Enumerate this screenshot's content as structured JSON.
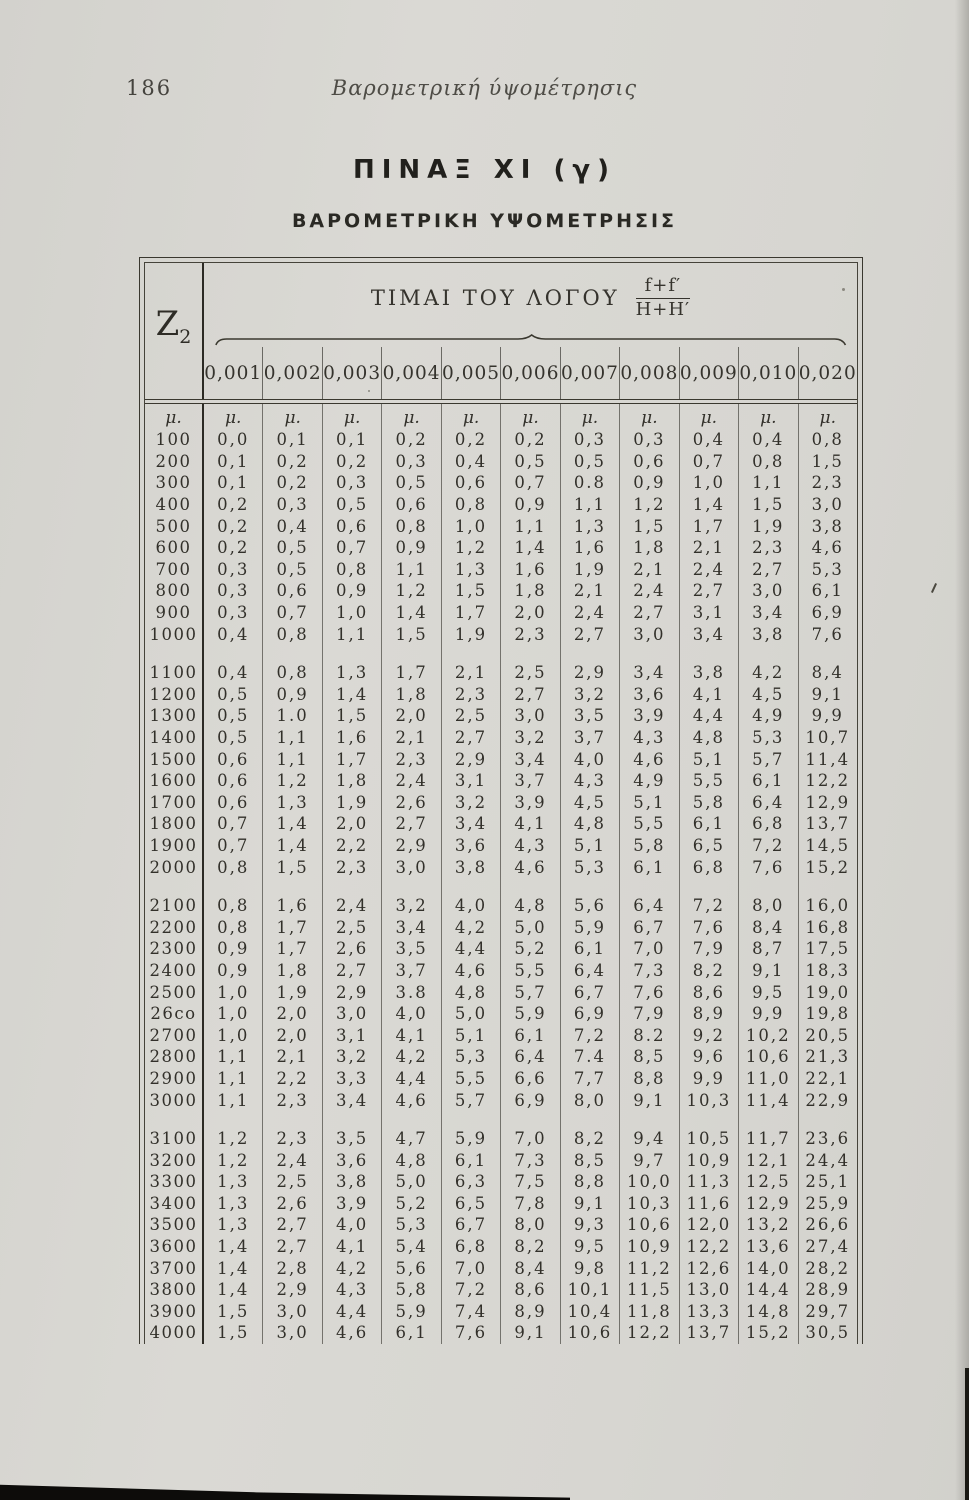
{
  "page": {
    "number": "186",
    "running_head": "Βαρομετρική ύψομέτρησις"
  },
  "table": {
    "title": "ΠΙΝΑΞ ΧΙ (γ)",
    "subtitle": "ΒΑΡΟΜΕΤΡΙΚΗ ΥΨΟΜΕΤΡΗΣΙΣ",
    "corner_label": "Z",
    "corner_sub": "2",
    "header_label": "ΤΙΜΑΙ ΤΟΥ ΛΟΓΟΥ",
    "fraction_numerator": "f+f′",
    "fraction_denominator": "H+H′",
    "column_headers": [
      "0,001",
      "0,002",
      "0,003",
      "0,004",
      "0,005",
      "0,006",
      "0,007",
      "0,008",
      "0,009",
      "0,010",
      "0,020"
    ],
    "unit_label": "μ.",
    "blocks": [
      {
        "rows": [
          {
            "z": "100",
            "values": [
              "0,0",
              "0,1",
              "0,1",
              "0,2",
              "0,2",
              "0,2",
              "0,3",
              "0,3",
              "0,4",
              "0,4",
              "0,8"
            ]
          },
          {
            "z": "200",
            "values": [
              "0,1",
              "0,2",
              "0,2",
              "0,3",
              "0,4",
              "0,5",
              "0,5",
              "0,6",
              "0,7",
              "0,8",
              "1,5"
            ]
          },
          {
            "z": "300",
            "values": [
              "0,1",
              "0,2",
              "0,3",
              "0,5",
              "0,6",
              "0,7",
              "0.8",
              "0,9",
              "1,0",
              "1,1",
              "2,3"
            ]
          },
          {
            "z": "400",
            "values": [
              "0,2",
              "0,3",
              "0,5",
              "0,6",
              "0,8",
              "0,9",
              "1,1",
              "1,2",
              "1,4",
              "1,5",
              "3,0"
            ]
          },
          {
            "z": "500",
            "values": [
              "0,2",
              "0,4",
              "0,6",
              "0,8",
              "1,0",
              "1,1",
              "1,3",
              "1,5",
              "1,7",
              "1,9",
              "3,8"
            ]
          },
          {
            "z": "600",
            "values": [
              "0,2",
              "0,5",
              "0,7",
              "0,9",
              "1,2",
              "1,4",
              "1,6",
              "1,8",
              "2,1",
              "2,3",
              "4,6"
            ]
          },
          {
            "z": "700",
            "values": [
              "0,3",
              "0,5",
              "0,8",
              "1,1",
              "1,3",
              "1,6",
              "1,9",
              "2,1",
              "2,4",
              "2,7",
              "5,3"
            ]
          },
          {
            "z": "800",
            "values": [
              "0,3",
              "0,6",
              "0,9",
              "1,2",
              "1,5",
              "1,8",
              "2,1",
              "2,4",
              "2,7",
              "3,0",
              "6,1"
            ]
          },
          {
            "z": "900",
            "values": [
              "0,3",
              "0,7",
              "1,0",
              "1,4",
              "1,7",
              "2,0",
              "2,4",
              "2,7",
              "3,1",
              "3,4",
              "6,9"
            ]
          },
          {
            "z": "1000",
            "values": [
              "0,4",
              "0,8",
              "1,1",
              "1,5",
              "1,9",
              "2,3",
              "2,7",
              "3,0",
              "3,4",
              "3,8",
              "7,6"
            ]
          }
        ]
      },
      {
        "rows": [
          {
            "z": "1100",
            "values": [
              "0,4",
              "0,8",
              "1,3",
              "1,7",
              "2,1",
              "2,5",
              "2,9",
              "3,4",
              "3,8",
              "4,2",
              "8,4"
            ]
          },
          {
            "z": "1200",
            "values": [
              "0,5",
              "0,9",
              "1,4",
              "1,8",
              "2,3",
              "2,7",
              "3,2",
              "3,6",
              "4,1",
              "4,5",
              "9,1"
            ]
          },
          {
            "z": "1300",
            "values": [
              "0,5",
              "1.0",
              "1,5",
              "2,0",
              "2,5",
              "3,0",
              "3,5",
              "3,9",
              "4,4",
              "4,9",
              "9,9"
            ]
          },
          {
            "z": "1400",
            "values": [
              "0,5",
              "1,1",
              "1,6",
              "2,1",
              "2,7",
              "3,2",
              "3,7",
              "4,3",
              "4,8",
              "5,3",
              "10,7"
            ]
          },
          {
            "z": "1500",
            "values": [
              "0,6",
              "1,1",
              "1,7",
              "2,3",
              "2,9",
              "3,4",
              "4,0",
              "4,6",
              "5,1",
              "5,7",
              "11,4"
            ]
          },
          {
            "z": "1600",
            "values": [
              "0,6",
              "1,2",
              "1,8",
              "2,4",
              "3,1",
              "3,7",
              "4,3",
              "4,9",
              "5,5",
              "6,1",
              "12,2"
            ]
          },
          {
            "z": "1700",
            "values": [
              "0,6",
              "1,3",
              "1,9",
              "2,6",
              "3,2",
              "3,9",
              "4,5",
              "5,1",
              "5,8",
              "6,4",
              "12,9"
            ]
          },
          {
            "z": "1800",
            "values": [
              "0,7",
              "1,4",
              "2,0",
              "2,7",
              "3,4",
              "4,1",
              "4,8",
              "5,5",
              "6,1",
              "6,8",
              "13,7"
            ]
          },
          {
            "z": "1900",
            "values": [
              "0,7",
              "1,4",
              "2,2",
              "2,9",
              "3,6",
              "4,3",
              "5,1",
              "5,8",
              "6,5",
              "7,2",
              "14,5"
            ]
          },
          {
            "z": "2000",
            "values": [
              "0,8",
              "1,5",
              "2,3",
              "3,0",
              "3,8",
              "4,6",
              "5,3",
              "6,1",
              "6,8",
              "7,6",
              "15,2"
            ]
          }
        ]
      },
      {
        "rows": [
          {
            "z": "2100",
            "values": [
              "0,8",
              "1,6",
              "2,4",
              "3,2",
              "4,0",
              "4,8",
              "5,6",
              "6,4",
              "7,2",
              "8,0",
              "16,0"
            ]
          },
          {
            "z": "2200",
            "values": [
              "0,8",
              "1,7",
              "2,5",
              "3,4",
              "4,2",
              "5,0",
              "5,9",
              "6,7",
              "7,6",
              "8,4",
              "16,8"
            ]
          },
          {
            "z": "2300",
            "values": [
              "0,9",
              "1,7",
              "2,6",
              "3,5",
              "4,4",
              "5,2",
              "6,1",
              "7,0",
              "7,9",
              "8,7",
              "17,5"
            ]
          },
          {
            "z": "2400",
            "values": [
              "0,9",
              "1,8",
              "2,7",
              "3,7",
              "4,6",
              "5,5",
              "6,4",
              "7,3",
              "8,2",
              "9,1",
              "18,3"
            ]
          },
          {
            "z": "2500",
            "values": [
              "1,0",
              "1,9",
              "2,9",
              "3.8",
              "4,8",
              "5,7",
              "6,7",
              "7,6",
              "8,6",
              "9,5",
              "19,0"
            ]
          },
          {
            "z": "26co",
            "values": [
              "1,0",
              "2,0",
              "3,0",
              "4,0",
              "5,0",
              "5,9",
              "6,9",
              "7,9",
              "8,9",
              "9,9",
              "19,8"
            ]
          },
          {
            "z": "2700",
            "values": [
              "1,0",
              "2,0",
              "3,1",
              "4,1",
              "5,1",
              "6,1",
              "7,2",
              "8.2",
              "9,2",
              "10,2",
              "20,5"
            ]
          },
          {
            "z": "2800",
            "values": [
              "1,1",
              "2,1",
              "3,2",
              "4,2",
              "5,3",
              "6,4",
              "7.4",
              "8,5",
              "9,6",
              "10,6",
              "21,3"
            ]
          },
          {
            "z": "2900",
            "values": [
              "1,1",
              "2,2",
              "3,3",
              "4,4",
              "5,5",
              "6,6",
              "7,7",
              "8,8",
              "9,9",
              "11,0",
              "22,1"
            ]
          },
          {
            "z": "3000",
            "values": [
              "1,1",
              "2,3",
              "3,4",
              "4,6",
              "5,7",
              "6,9",
              "8,0",
              "9,1",
              "10,3",
              "11,4",
              "22,9"
            ]
          }
        ]
      },
      {
        "rows": [
          {
            "z": "3100",
            "values": [
              "1,2",
              "2,3",
              "3,5",
              "4,7",
              "5,9",
              "7,0",
              "8,2",
              "9,4",
              "10,5",
              "11,7",
              "23,6"
            ]
          },
          {
            "z": "3200",
            "values": [
              "1,2",
              "2,4",
              "3,6",
              "4,8",
              "6,1",
              "7,3",
              "8,5",
              "9,7",
              "10,9",
              "12,1",
              "24,4"
            ]
          },
          {
            "z": "3300",
            "values": [
              "1,3",
              "2,5",
              "3,8",
              "5,0",
              "6,3",
              "7,5",
              "8,8",
              "10,0",
              "11,3",
              "12,5",
              "25,1"
            ]
          },
          {
            "z": "3400",
            "values": [
              "1,3",
              "2,6",
              "3,9",
              "5,2",
              "6,5",
              "7,8",
              "9,1",
              "10,3",
              "11,6",
              "12,9",
              "25,9"
            ]
          },
          {
            "z": "3500",
            "values": [
              "1,3",
              "2,7",
              "4,0",
              "5,3",
              "6,7",
              "8,0",
              "9,3",
              "10,6",
              "12,0",
              "13,2",
              "26,6"
            ]
          },
          {
            "z": "3600",
            "values": [
              "1,4",
              "2,7",
              "4,1",
              "5,4",
              "6,8",
              "8,2",
              "9,5",
              "10,9",
              "12,2",
              "13,6",
              "27,4"
            ]
          },
          {
            "z": "3700",
            "values": [
              "1,4",
              "2,8",
              "4,2",
              "5,6",
              "7,0",
              "8,4",
              "9,8",
              "11,2",
              "12,6",
              "14,0",
              "28,2"
            ]
          },
          {
            "z": "3800",
            "values": [
              "1,4",
              "2,9",
              "4,3",
              "5,8",
              "7,2",
              "8,6",
              "10,1",
              "11,5",
              "13,0",
              "14,4",
              "28,9"
            ]
          },
          {
            "z": "3900",
            "values": [
              "1,5",
              "3,0",
              "4,4",
              "5,9",
              "7,4",
              "8,9",
              "10,4",
              "11,8",
              "13,3",
              "14,8",
              "29,7"
            ]
          },
          {
            "z": "4000",
            "values": [
              "1,5",
              "3,0",
              "4,6",
              "6,1",
              "7,6",
              "9,1",
              "10,6",
              "12,2",
              "13,7",
              "15,2",
              "30,5"
            ]
          }
        ]
      }
    ]
  },
  "colors": {
    "paper": "#d7d6d1",
    "ink": "#32302a",
    "rule": "#3a382f"
  }
}
